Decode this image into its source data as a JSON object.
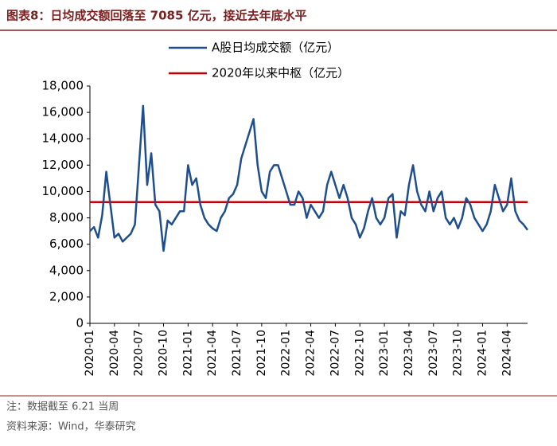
{
  "chart_data": {
    "type": "line",
    "title": "图表8：日均成交额回落至 7085 亿元，接近去年底水平",
    "categories": [
      "2020-01",
      null,
      null,
      null,
      null,
      null,
      "2020-04",
      null,
      null,
      null,
      null,
      null,
      "2020-07",
      null,
      null,
      null,
      null,
      null,
      "2020-10",
      null,
      null,
      null,
      null,
      null,
      "2021-01",
      null,
      null,
      null,
      null,
      null,
      "2021-04",
      null,
      null,
      null,
      null,
      null,
      "2021-07",
      null,
      null,
      null,
      null,
      null,
      "2021-10",
      null,
      null,
      null,
      null,
      null,
      "2022-01",
      null,
      null,
      null,
      null,
      null,
      "2022-04",
      null,
      null,
      null,
      null,
      null,
      "2022-07",
      null,
      null,
      null,
      null,
      null,
      "2022-10",
      null,
      null,
      null,
      null,
      null,
      "2023-01",
      null,
      null,
      null,
      null,
      null,
      "2023-04",
      null,
      null,
      null,
      null,
      null,
      "2023-07",
      null,
      null,
      null,
      null,
      null,
      "2023-10",
      null,
      null,
      null,
      null,
      null,
      "2024-01",
      null,
      null,
      null,
      null,
      null,
      "2024-04",
      null,
      null,
      null,
      null,
      null
    ],
    "series": [
      {
        "name": "A股日均成交额（亿元）",
        "color": "#1f4e8c",
        "values": [
          7000,
          7300,
          6500,
          8200,
          11500,
          9000,
          6500,
          6800,
          6200,
          6500,
          6800,
          7500,
          12000,
          16500,
          10500,
          12900,
          9000,
          8500,
          5500,
          7800,
          7500,
          8000,
          8500,
          8500,
          12000,
          10500,
          11000,
          9000,
          8000,
          7500,
          7200,
          7000,
          8000,
          8500,
          9500,
          9800,
          10500,
          12500,
          13500,
          14500,
          15500,
          12000,
          10000,
          9500,
          11500,
          12000,
          12000,
          11000,
          10000,
          9000,
          9000,
          10000,
          9500,
          8000,
          9000,
          8500,
          8000,
          8500,
          10500,
          11500,
          10500,
          9500,
          10500,
          9500,
          8000,
          7500,
          6500,
          7200,
          8500,
          9500,
          8000,
          7500,
          8000,
          9500,
          9800,
          6500,
          8500,
          8200,
          10500,
          12000,
          10000,
          9000,
          8500,
          10000,
          8500,
          9500,
          10000,
          8000,
          7500,
          8000,
          7200,
          8000,
          9500,
          9000,
          8000,
          7500,
          7000,
          7500,
          8500,
          10500,
          9500,
          8500,
          9000,
          11000,
          8500,
          7800,
          7500,
          7085
        ]
      }
    ],
    "reference_line": {
      "name": "2020年以来中枢（亿元）",
      "color": "#c00000",
      "value": 9200
    },
    "ylim": [
      0,
      18000
    ],
    "yticks": [
      0,
      {
        "value": 2000,
        "label": "2,000"
      },
      {
        "value": 4000,
        "label": "4,000"
      },
      {
        "value": 6000,
        "label": "6,000"
      },
      {
        "value": 8000,
        "label": "8,000"
      },
      {
        "value": 10000,
        "label": "10,000"
      },
      {
        "value": 12000,
        "label": "12,000"
      },
      {
        "value": 14000,
        "label": "14,000"
      },
      {
        "value": 16000,
        "label": "16,000"
      },
      {
        "value": 18000,
        "label": "18,000"
      }
    ],
    "notes": [
      "注：数据截至 6.21 当周",
      "资料来源：Wind，华泰研究"
    ]
  }
}
